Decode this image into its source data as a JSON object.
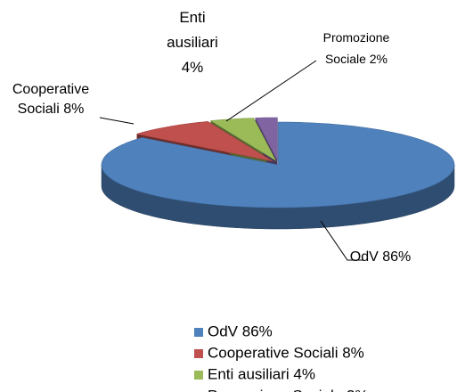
{
  "chart_data": {
    "type": "pie",
    "categories": [
      "OdV 86%",
      "Cooperative Sociali 8%",
      "Enti ausiliari 4%",
      "Promozione Sociale 2%"
    ],
    "values": [
      86,
      8,
      4,
      2
    ],
    "colors": [
      "#4f81bd",
      "#c0504d",
      "#9bbb59",
      "#8064a2"
    ],
    "legend": "bottom"
  }
}
